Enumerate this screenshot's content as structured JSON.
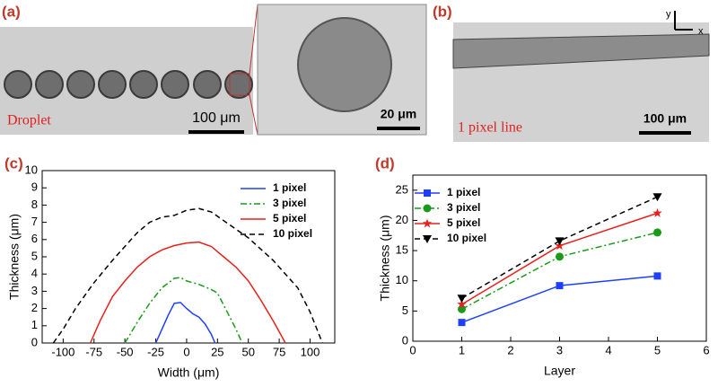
{
  "micrographs": {
    "a": {
      "panel_label": "(a)",
      "caption": "Droplet",
      "scale_bar": "100 μm",
      "inset_scale_bar": "20 μm"
    },
    "b": {
      "panel_label": "(b)",
      "caption": "1 pixel line",
      "scale_bar": "100 μm",
      "axis_y": "y",
      "axis_x": "x"
    }
  },
  "chart_data": [
    {
      "type": "line",
      "panel_label": "(c)",
      "xlabel": "Width (μm)",
      "ylabel": "Thickness (μm)",
      "xlim": [
        -117,
        120
      ],
      "xticks": [
        -100,
        -75,
        -50,
        -25,
        0,
        25,
        50,
        75,
        100
      ],
      "ylim": [
        0,
        10
      ],
      "yticks": [
        0,
        1,
        2,
        3,
        4,
        5,
        6,
        7,
        8,
        9,
        10
      ],
      "legend": "upper right",
      "series": [
        {
          "name": "1  pixel",
          "color": "#1f3fff",
          "linestyle": "solid",
          "x": [
            -25,
            -20,
            -15,
            -10,
            -5,
            0,
            5,
            10,
            15,
            20,
            23
          ],
          "values": [
            0,
            0.8,
            1.6,
            2.3,
            2.35,
            2.0,
            1.7,
            1.5,
            1.1,
            0.5,
            0
          ]
        },
        {
          "name": "3  pixel",
          "color": "#1a9a1a",
          "linestyle": "dashdot",
          "x": [
            -50,
            -40,
            -30,
            -20,
            -10,
            -5,
            0,
            10,
            20,
            25,
            30,
            40,
            45
          ],
          "values": [
            0,
            1.2,
            2.3,
            3.2,
            3.75,
            3.8,
            3.6,
            3.4,
            3.1,
            2.9,
            2.2,
            0.8,
            0
          ]
        },
        {
          "name": "5  pixel",
          "color": "#e8201c",
          "linestyle": "solid",
          "x": [
            -78,
            -70,
            -60,
            -50,
            -40,
            -30,
            -20,
            -10,
            0,
            10,
            20,
            30,
            40,
            50,
            60,
            70,
            80
          ],
          "values": [
            0,
            1.3,
            2.7,
            3.6,
            4.4,
            5.0,
            5.4,
            5.65,
            5.8,
            5.85,
            5.6,
            5.0,
            4.4,
            3.6,
            2.5,
            1.3,
            0
          ]
        },
        {
          "name": "10  pixel",
          "color": "#000000",
          "linestyle": "dashed",
          "x": [
            -108,
            -100,
            -90,
            -75,
            -60,
            -50,
            -40,
            -30,
            -20,
            -10,
            0,
            10,
            20,
            30,
            50,
            70,
            90,
            100,
            110
          ],
          "values": [
            0,
            0.8,
            2.0,
            3.5,
            4.8,
            5.6,
            6.4,
            7.0,
            7.3,
            7.4,
            7.7,
            7.8,
            7.6,
            7.1,
            6.1,
            4.8,
            3.2,
            1.8,
            0
          ]
        }
      ]
    },
    {
      "type": "line",
      "panel_label": "(d)",
      "xlabel": "Layer",
      "ylabel": "Thickness (μm)",
      "xlim": [
        0,
        6
      ],
      "xticks": [
        0,
        1,
        2,
        3,
        4,
        5,
        6
      ],
      "ylim": [
        0,
        27.5
      ],
      "yticks": [
        0,
        5,
        10,
        15,
        20,
        25
      ],
      "legend": "upper left",
      "x": [
        1,
        3,
        5
      ],
      "series": [
        {
          "name": "1  pixel",
          "color": "#1f3fff",
          "linestyle": "solid",
          "marker": "square",
          "values": [
            3.1,
            9.2,
            10.8
          ]
        },
        {
          "name": "3  pixel",
          "color": "#1a9a1a",
          "linestyle": "dashdot",
          "marker": "circle",
          "values": [
            5.3,
            14,
            18
          ]
        },
        {
          "name": "5  pixel",
          "color": "#e8201c",
          "linestyle": "solid",
          "marker": "star",
          "values": [
            6.1,
            15.8,
            21.2
          ]
        },
        {
          "name": "10  pixel",
          "color": "#000000",
          "linestyle": "dashed",
          "marker": "triangle-down",
          "values": [
            7.1,
            16.6,
            23.9
          ]
        }
      ]
    }
  ]
}
